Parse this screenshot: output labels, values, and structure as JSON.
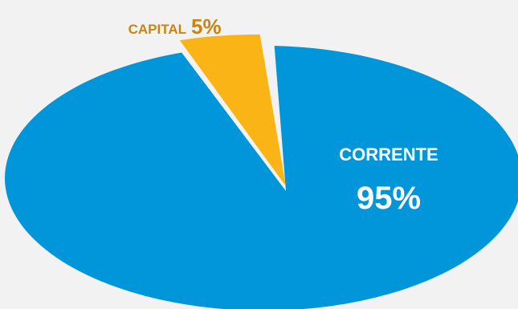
{
  "chart_data": {
    "type": "pie",
    "slices": [
      {
        "label": "CORRENTE",
        "value": 95,
        "value_label": "95%",
        "color": "#0096d9",
        "label_color": "#ffffff"
      },
      {
        "label": "CAPITAL",
        "value": 5,
        "value_label": "5%",
        "color": "#fbb416",
        "label_color": "#c8860f",
        "exploded": true
      }
    ],
    "background": "#f2f2f2"
  }
}
